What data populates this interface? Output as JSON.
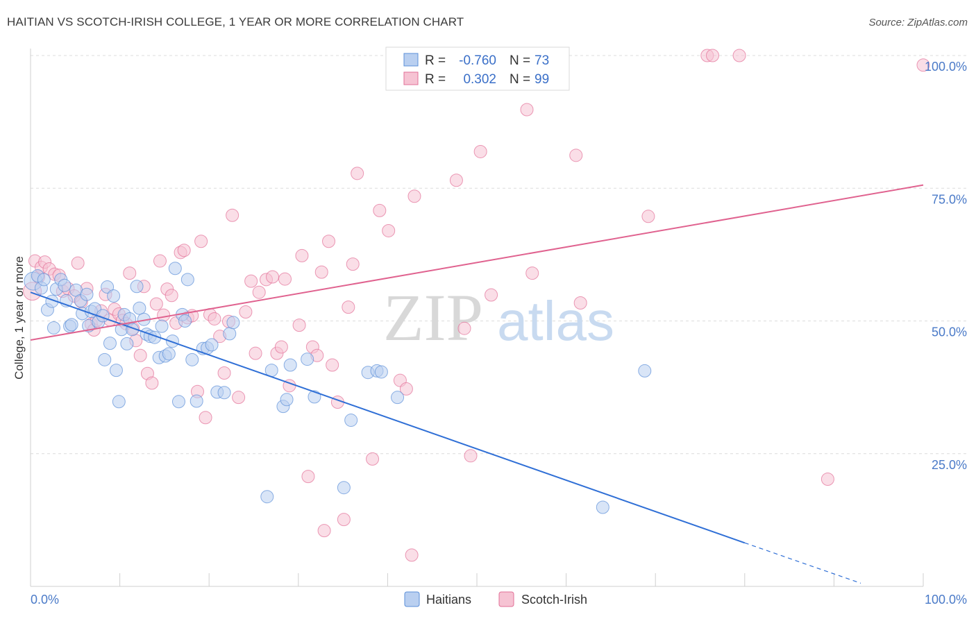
{
  "title": "HAITIAN VS SCOTCH-IRISH COLLEGE, 1 YEAR OR MORE CORRELATION CHART",
  "source": "Source: ZipAtlas.com",
  "watermark": {
    "zip": "ZIP",
    "atlas": "atlas"
  },
  "colors": {
    "blue": "#5b8fd8",
    "blue_fill": "#b9cff0",
    "pink": "#e26f97",
    "pink_fill": "#f6c3d3",
    "axis_text": "#4a7ac8"
  },
  "legend": {
    "rows": [
      {
        "r_label": "R =",
        "r_value": "-0.760",
        "n_label": "N =",
        "n_value": "73"
      },
      {
        "r_label": "R =",
        "r_value": "0.302",
        "n_label": "N =",
        "n_value": "99"
      }
    ]
  },
  "bottom_legend": [
    "Haitians",
    "Scotch-Irish"
  ],
  "chart_data": {
    "type": "scatter",
    "title": "HAITIAN VS SCOTCH-IRISH COLLEGE, 1 YEAR OR MORE CORRELATION CHART",
    "xlabel": "",
    "ylabel": "College, 1 year or more",
    "xlim": [
      0,
      100
    ],
    "ylim": [
      0,
      100
    ],
    "x_tick_labels": [
      "0.0%",
      "100.0%"
    ],
    "y_tick_labels": [
      "25.0%",
      "50.0%",
      "75.0%",
      "100.0%"
    ],
    "y_ticks": [
      25,
      50,
      75,
      100
    ],
    "grid": true,
    "series": [
      {
        "name": "Haitians",
        "color": "#5b8fd8",
        "trend": {
          "x0": 0,
          "y0": 55.4,
          "x1": 80,
          "y1": 8.2,
          "dashed_to_x": 93,
          "dashed_to_y": 0.6
        },
        "points": [
          [
            0.3,
            57.5
          ],
          [
            0.8,
            58.5
          ],
          [
            1.2,
            56.2
          ],
          [
            1.5,
            57.8
          ],
          [
            1.9,
            52.1
          ],
          [
            2.4,
            53.7
          ],
          [
            2.6,
            48.7
          ],
          [
            2.9,
            56.0
          ],
          [
            3.4,
            57.8
          ],
          [
            3.8,
            56.7
          ],
          [
            4.0,
            53.8
          ],
          [
            4.4,
            49.0
          ],
          [
            4.6,
            49.3
          ],
          [
            5.1,
            55.8
          ],
          [
            5.6,
            53.8
          ],
          [
            5.8,
            51.4
          ],
          [
            6.3,
            55.0
          ],
          [
            6.5,
            49.1
          ],
          [
            6.8,
            51.8
          ],
          [
            7.2,
            52.3
          ],
          [
            7.6,
            49.8
          ],
          [
            8.1,
            51.0
          ],
          [
            8.3,
            42.7
          ],
          [
            8.6,
            56.4
          ],
          [
            8.9,
            45.8
          ],
          [
            9.3,
            54.7
          ],
          [
            9.6,
            40.7
          ],
          [
            9.9,
            34.8
          ],
          [
            10.2,
            48.4
          ],
          [
            10.5,
            51.2
          ],
          [
            10.8,
            45.7
          ],
          [
            11.1,
            50.4
          ],
          [
            11.4,
            48.4
          ],
          [
            11.9,
            56.5
          ],
          [
            12.2,
            52.4
          ],
          [
            12.7,
            50.3
          ],
          [
            13.0,
            47.5
          ],
          [
            13.4,
            47.1
          ],
          [
            13.9,
            46.9
          ],
          [
            14.4,
            43.1
          ],
          [
            14.7,
            49.0
          ],
          [
            15.1,
            43.4
          ],
          [
            15.5,
            43.8
          ],
          [
            15.9,
            46.2
          ],
          [
            16.2,
            59.9
          ],
          [
            16.6,
            34.8
          ],
          [
            17.0,
            51.2
          ],
          [
            17.3,
            50.0
          ],
          [
            17.6,
            57.8
          ],
          [
            18.1,
            42.7
          ],
          [
            18.6,
            34.9
          ],
          [
            19.3,
            44.8
          ],
          [
            19.8,
            44.9
          ],
          [
            20.3,
            45.5
          ],
          [
            20.9,
            36.6
          ],
          [
            21.7,
            36.5
          ],
          [
            22.3,
            47.6
          ],
          [
            22.7,
            49.7
          ],
          [
            26.5,
            16.9
          ],
          [
            27.0,
            40.7
          ],
          [
            28.3,
            33.9
          ],
          [
            28.7,
            35.2
          ],
          [
            29.1,
            41.7
          ],
          [
            31.0,
            42.8
          ],
          [
            31.8,
            35.7
          ],
          [
            35.1,
            18.6
          ],
          [
            35.9,
            31.3
          ],
          [
            37.8,
            40.3
          ],
          [
            38.8,
            40.6
          ],
          [
            39.3,
            40.4
          ],
          [
            41.1,
            35.6
          ],
          [
            64.1,
            14.9
          ],
          [
            68.8,
            40.6
          ]
        ]
      },
      {
        "name": "Scotch-Irish",
        "color": "#e26f97",
        "trend": {
          "x0": 0,
          "y0": 46.4,
          "x1": 100,
          "y1": 75.6
        },
        "points": [
          [
            0.2,
            55.6
          ],
          [
            0.5,
            61.3
          ],
          [
            0.9,
            58.3
          ],
          [
            1.2,
            60.1
          ],
          [
            1.6,
            61.1
          ],
          [
            2.1,
            59.8
          ],
          [
            2.7,
            58.8
          ],
          [
            3.2,
            58.6
          ],
          [
            3.6,
            55.6
          ],
          [
            4.2,
            56.1
          ],
          [
            4.9,
            54.7
          ],
          [
            5.3,
            60.9
          ],
          [
            5.7,
            53.6
          ],
          [
            6.3,
            56.1
          ],
          [
            6.8,
            49.4
          ],
          [
            7.1,
            48.3
          ],
          [
            7.4,
            50.1
          ],
          [
            7.9,
            51.9
          ],
          [
            8.4,
            55.0
          ],
          [
            8.9,
            50.2
          ],
          [
            9.4,
            52.2
          ],
          [
            9.9,
            51.3
          ],
          [
            10.3,
            50.1
          ],
          [
            10.7,
            49.5
          ],
          [
            11.1,
            59.0
          ],
          [
            11.5,
            48.6
          ],
          [
            11.8,
            46.3
          ],
          [
            12.3,
            43.5
          ],
          [
            12.7,
            56.5
          ],
          [
            13.1,
            40.1
          ],
          [
            13.6,
            38.3
          ],
          [
            14.1,
            53.2
          ],
          [
            14.5,
            61.3
          ],
          [
            14.9,
            51.1
          ],
          [
            15.3,
            56.0
          ],
          [
            15.8,
            54.8
          ],
          [
            16.3,
            49.6
          ],
          [
            16.8,
            62.9
          ],
          [
            17.2,
            63.3
          ],
          [
            17.6,
            50.6
          ],
          [
            18.1,
            51.0
          ],
          [
            18.7,
            36.7
          ],
          [
            19.1,
            65.0
          ],
          [
            19.6,
            31.8
          ],
          [
            20.1,
            51.2
          ],
          [
            20.6,
            50.4
          ],
          [
            21.2,
            47.1
          ],
          [
            21.7,
            40.2
          ],
          [
            22.2,
            49.9
          ],
          [
            22.6,
            69.9
          ],
          [
            23.3,
            35.6
          ],
          [
            24.1,
            51.7
          ],
          [
            24.7,
            57.5
          ],
          [
            25.2,
            43.9
          ],
          [
            25.6,
            55.4
          ],
          [
            26.4,
            57.8
          ],
          [
            27.1,
            58.3
          ],
          [
            27.6,
            43.9
          ],
          [
            28.1,
            45.1
          ],
          [
            28.5,
            57.9
          ],
          [
            29.0,
            37.8
          ],
          [
            30.1,
            49.2
          ],
          [
            30.4,
            62.3
          ],
          [
            31.1,
            20.7
          ],
          [
            31.6,
            45.1
          ],
          [
            32.1,
            43.5
          ],
          [
            32.6,
            59.2
          ],
          [
            32.9,
            10.5
          ],
          [
            33.4,
            65.0
          ],
          [
            33.8,
            41.7
          ],
          [
            34.4,
            34.7
          ],
          [
            35.1,
            12.6
          ],
          [
            35.6,
            52.6
          ],
          [
            36.1,
            60.7
          ],
          [
            36.6,
            77.8
          ],
          [
            38.3,
            24.0
          ],
          [
            39.1,
            70.8
          ],
          [
            40.1,
            67.0
          ],
          [
            41.4,
            38.8
          ],
          [
            42.1,
            37.2
          ],
          [
            42.7,
            5.9
          ],
          [
            43.0,
            73.5
          ],
          [
            43.9,
            100
          ],
          [
            47.7,
            76.5
          ],
          [
            48.6,
            48.6
          ],
          [
            49.3,
            24.6
          ],
          [
            50.4,
            81.9
          ],
          [
            51.6,
            54.9
          ],
          [
            55.6,
            89.8
          ],
          [
            56.2,
            59.0
          ],
          [
            57.6,
            100
          ],
          [
            61.1,
            81.2
          ],
          [
            61.6,
            53.4
          ],
          [
            69.2,
            69.7
          ],
          [
            75.8,
            100
          ],
          [
            76.4,
            100
          ],
          [
            79.4,
            100
          ],
          [
            89.3,
            20.2
          ],
          [
            100,
            98.2
          ]
        ]
      }
    ]
  }
}
